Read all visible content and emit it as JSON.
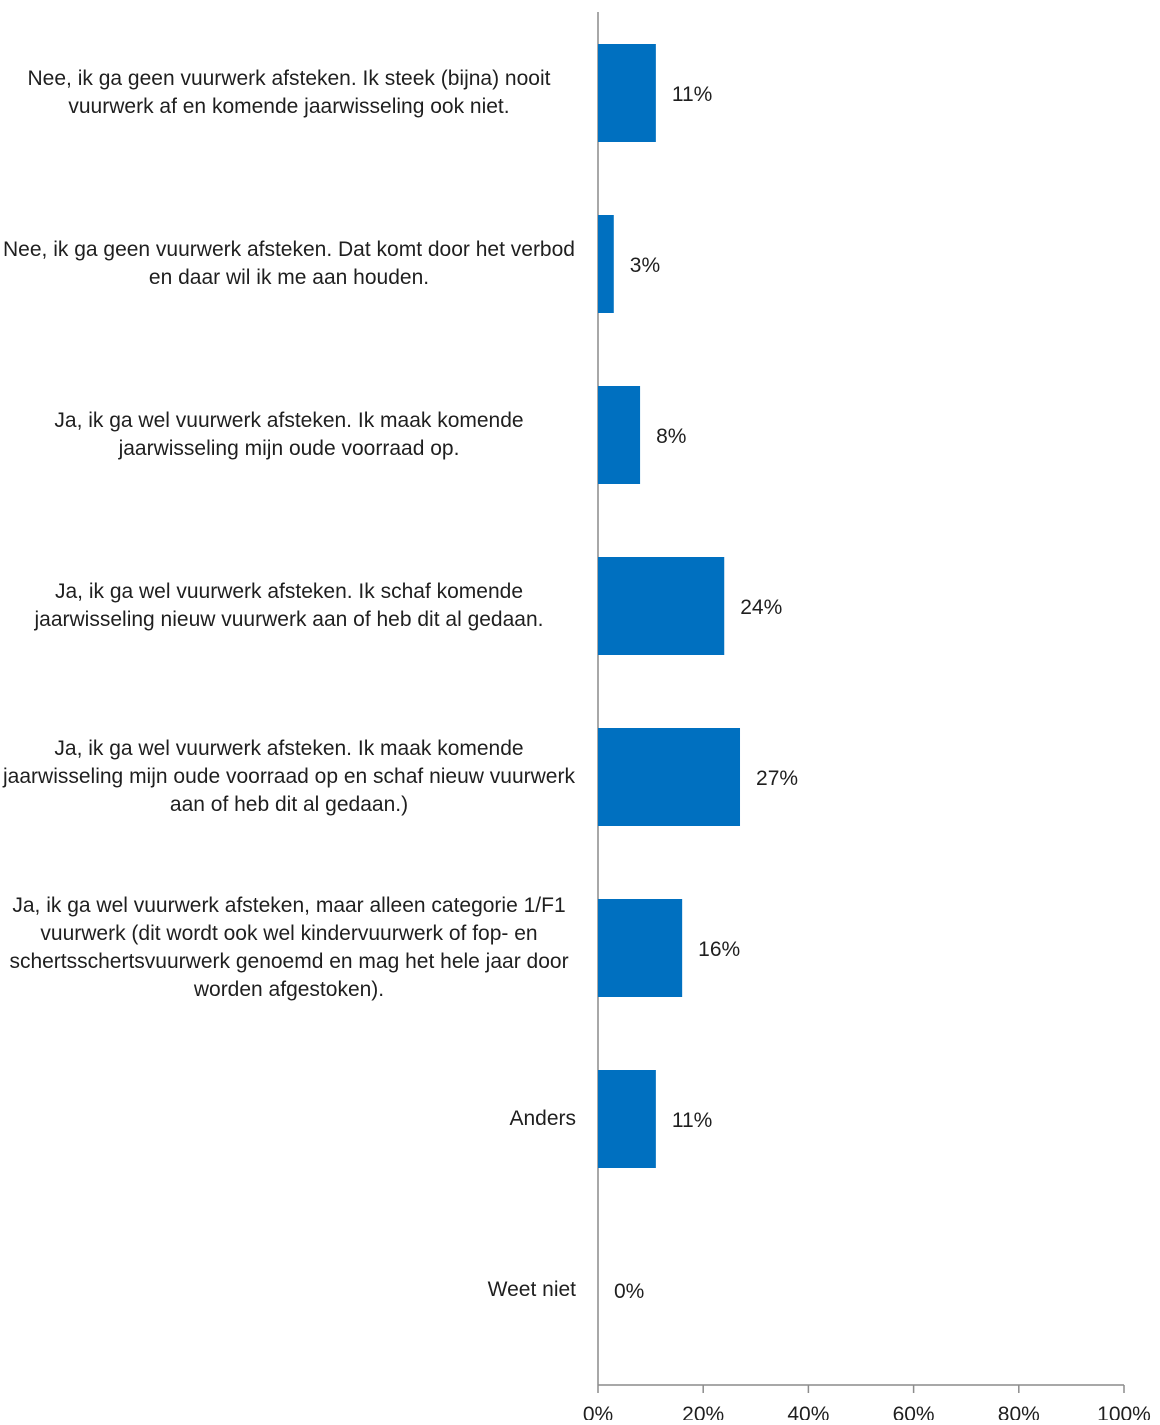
{
  "chart_data": {
    "type": "bar",
    "orientation": "horizontal",
    "categories": [
      "Nee, ik ga geen vuurwerk afsteken. Ik steek (bijna) nooit vuurwerk af en komende jaarwisseling ook niet.",
      "Nee, ik ga geen vuurwerk afsteken. Dat komt door het verbod en daar wil ik me aan houden.",
      "Ja, ik ga wel vuurwerk afsteken. Ik maak komende jaarwisseling mijn oude voorraad op.",
      "Ja, ik ga wel vuurwerk afsteken. Ik schaf komende jaarwisseling nieuw vuurwerk aan of heb dit al gedaan.",
      "Ja, ik ga wel vuurwerk afsteken. Ik maak komende jaarwisseling mijn oude voorraad op en schaf nieuw vuurwerk aan of heb dit al gedaan.)",
      "Ja, ik ga wel vuurwerk afsteken, maar alleen categorie 1/F1 vuurwerk (dit wordt ook wel kindervuurwerk of fop- en schertsschertsvuurwerk genoemd en mag het hele jaar door worden afgestoken).",
      "Anders",
      "Weet niet"
    ],
    "values": [
      11,
      3,
      8,
      24,
      27,
      16,
      11,
      0
    ],
    "data_labels": [
      "11%",
      "3%",
      "8%",
      "24%",
      "27%",
      "16%",
      "11%",
      "0%"
    ],
    "xlim": [
      0,
      100
    ],
    "x_ticks": [
      "0%",
      "20%",
      "40%",
      "60%",
      "80%",
      "100%"
    ],
    "x_tick_values": [
      0,
      20,
      40,
      60,
      80,
      100
    ],
    "title": "",
    "xlabel": "",
    "ylabel": "",
    "grid": false,
    "legend": "none",
    "bar_color": "#0070C0",
    "axis_color": "#8c8c8c"
  }
}
